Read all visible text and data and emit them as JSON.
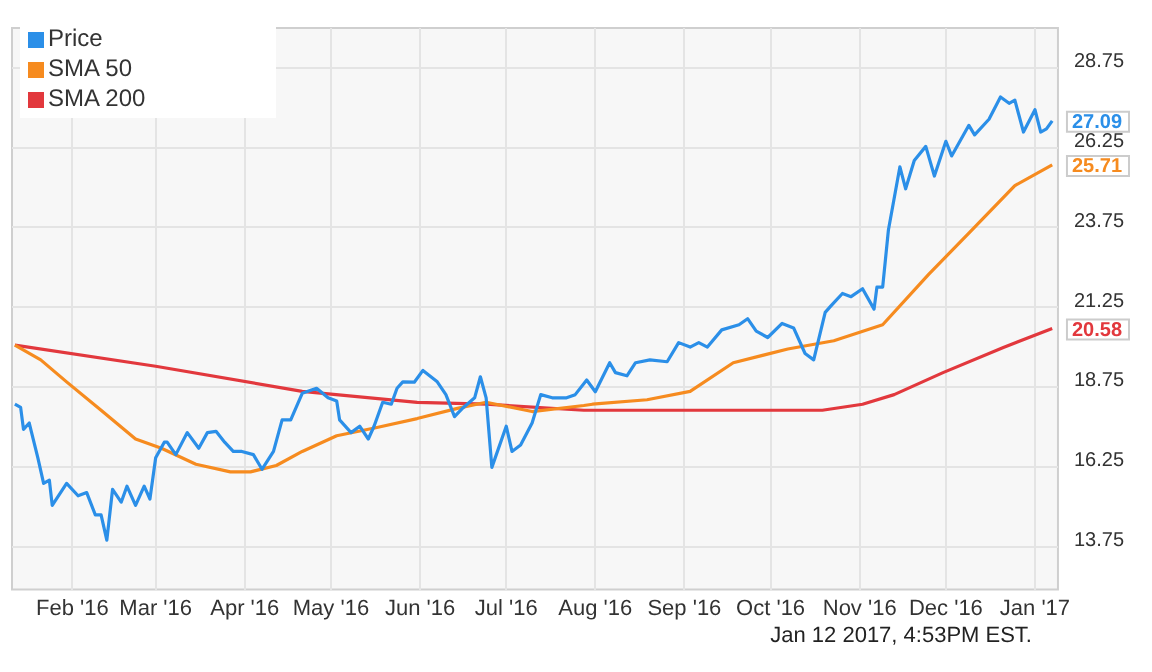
{
  "chart_data": {
    "type": "line",
    "xlim": [
      "2016-01-11",
      "2017-01-09"
    ],
    "xticks": [
      {
        "value": "2016-02-01",
        "label": "Feb '16"
      },
      {
        "value": "2016-03-01",
        "label": "Mar '16"
      },
      {
        "value": "2016-04-01",
        "label": "Apr '16"
      },
      {
        "value": "2016-05-01",
        "label": "May '16"
      },
      {
        "value": "2016-06-01",
        "label": "Jun '16"
      },
      {
        "value": "2016-07-01",
        "label": "Jul '16"
      },
      {
        "value": "2016-08-01",
        "label": "Aug '16"
      },
      {
        "value": "2016-09-01",
        "label": "Sep '16"
      },
      {
        "value": "2016-10-01",
        "label": "Oct '16"
      },
      {
        "value": "2016-11-01",
        "label": "Nov '16"
      },
      {
        "value": "2016-12-01",
        "label": "Dec '16"
      },
      {
        "value": "2017-01-01",
        "label": "Jan '17"
      }
    ],
    "ylim": [
      12.4,
      30
    ],
    "yticks": [
      13.75,
      16.25,
      18.75,
      21.25,
      23.75,
      26.25,
      28.75
    ],
    "grid": true,
    "legend": "top left",
    "marker": "none",
    "line_style": "solid",
    "annotations": [
      "Jan 12 2017, 4:53PM EST."
    ],
    "series": [
      {
        "name": "Price",
        "color": "#2b8fe8",
        "x": [
          "2016-01-12",
          "2016-01-14",
          "2016-01-15",
          "2016-01-17",
          "2016-01-20",
          "2016-01-22",
          "2016-01-24",
          "2016-01-25",
          "2016-01-30",
          "2016-02-03",
          "2016-02-06",
          "2016-02-09",
          "2016-02-11",
          "2016-02-13",
          "2016-02-15",
          "2016-02-18",
          "2016-02-20",
          "2016-02-23",
          "2016-02-26",
          "2016-02-28",
          "2016-03-01",
          "2016-03-04",
          "2016-03-05",
          "2016-03-08",
          "2016-03-12",
          "2016-03-16",
          "2016-03-19",
          "2016-03-22",
          "2016-03-25",
          "2016-03-28",
          "2016-03-31",
          "2016-04-04",
          "2016-04-07",
          "2016-04-11",
          "2016-04-14",
          "2016-04-17",
          "2016-04-21",
          "2016-04-26",
          "2016-04-30",
          "2016-05-03",
          "2016-05-04",
          "2016-05-08",
          "2016-05-11",
          "2016-05-14",
          "2016-05-16",
          "2016-05-19",
          "2016-05-22",
          "2016-05-24",
          "2016-05-26",
          "2016-05-30",
          "2016-06-02",
          "2016-06-07",
          "2016-06-10",
          "2016-06-13",
          "2016-06-16",
          "2016-06-20",
          "2016-06-22",
          "2016-06-24",
          "2016-06-26",
          "2016-07-01",
          "2016-07-03",
          "2016-07-06",
          "2016-07-10",
          "2016-07-13",
          "2016-07-17",
          "2016-07-22",
          "2016-07-25",
          "2016-07-29",
          "2016-08-01",
          "2016-08-06",
          "2016-08-08",
          "2016-08-12",
          "2016-08-15",
          "2016-08-20",
          "2016-08-26",
          "2016-08-30",
          "2016-09-03",
          "2016-09-06",
          "2016-09-09",
          "2016-09-14",
          "2016-09-20",
          "2016-09-23",
          "2016-09-26",
          "2016-09-30",
          "2016-10-05",
          "2016-10-09",
          "2016-10-13",
          "2016-10-16",
          "2016-10-20",
          "2016-10-22",
          "2016-10-26",
          "2016-10-29",
          "2016-11-02",
          "2016-11-06",
          "2016-11-07",
          "2016-11-09",
          "2016-11-11",
          "2016-11-15",
          "2016-11-17",
          "2016-11-20",
          "2016-11-24",
          "2016-11-27",
          "2016-12-01",
          "2016-12-03",
          "2016-12-09",
          "2016-12-11",
          "2016-12-16",
          "2016-12-20",
          "2016-12-23",
          "2016-12-25",
          "2016-12-28",
          "2017-01-01",
          "2017-01-03",
          "2017-01-05",
          "2017-01-07"
        ],
        "values": [
          18.21,
          18.11,
          17.42,
          17.62,
          16.53,
          15.73,
          15.83,
          15.04,
          15.73,
          15.34,
          15.44,
          14.74,
          14.74,
          13.95,
          15.54,
          15.14,
          15.64,
          15.04,
          15.64,
          15.24,
          16.53,
          17.02,
          17.02,
          16.63,
          17.32,
          16.83,
          17.32,
          17.36,
          17.02,
          16.73,
          16.73,
          16.63,
          16.17,
          16.73,
          17.72,
          17.72,
          18.55,
          18.71,
          18.41,
          18.31,
          17.72,
          17.32,
          17.52,
          17.12,
          17.52,
          18.27,
          18.21,
          18.71,
          18.91,
          18.9,
          19.27,
          18.91,
          18.51,
          17.82,
          18.1,
          18.41,
          19.07,
          18.41,
          16.23,
          17.52,
          16.73,
          16.93,
          17.62,
          18.51,
          18.41,
          18.41,
          18.51,
          18.97,
          18.6,
          19.51,
          19.2,
          19.1,
          19.51,
          19.6,
          19.54,
          20.14,
          20.0,
          20.14,
          20.0,
          20.54,
          20.7,
          20.89,
          20.5,
          20.3,
          20.74,
          20.6,
          19.8,
          19.6,
          21.09,
          21.29,
          21.68,
          21.58,
          21.83,
          21.19,
          21.88,
          21.88,
          23.67,
          25.65,
          24.96,
          25.85,
          26.29,
          25.36,
          26.45,
          25.99,
          26.95,
          26.65,
          27.14,
          27.84,
          27.64,
          27.74,
          26.74,
          27.44,
          26.74,
          26.84,
          27.09
        ],
        "value_labels": [
          null,
          null,
          null,
          null,
          null,
          null,
          null,
          null,
          null,
          null,
          null,
          null,
          null,
          null,
          null,
          null,
          null,
          null,
          null,
          null,
          null,
          null,
          null,
          null,
          null,
          null,
          null,
          null,
          null,
          null,
          null,
          null,
          null,
          null,
          null,
          null,
          null,
          null,
          null,
          null,
          null,
          null,
          null,
          null,
          null,
          null,
          null,
          null,
          null,
          null,
          null,
          null,
          null,
          null,
          null,
          null,
          null,
          null,
          null,
          null,
          null,
          null,
          null,
          null,
          null,
          null,
          null,
          null,
          null,
          null,
          null,
          null,
          null,
          null,
          null,
          null,
          null,
          null,
          null,
          null,
          null,
          null,
          null,
          null,
          null,
          null,
          null,
          null,
          null,
          null,
          null,
          null,
          null,
          null,
          null,
          null,
          null,
          null,
          null,
          null,
          null,
          null,
          null,
          null,
          null,
          null,
          null,
          null,
          null,
          null,
          null,
          null,
          null,
          null,
          "27.09"
        ]
      },
      {
        "name": "SMA 50",
        "color": "#f68b1f",
        "x": [
          "2016-01-12",
          "2016-01-21",
          "2016-01-30",
          "2016-02-11",
          "2016-02-23",
          "2016-03-03",
          "2016-03-15",
          "2016-03-27",
          "2016-04-03",
          "2016-04-12",
          "2016-04-21",
          "2016-05-03",
          "2016-05-17",
          "2016-05-31",
          "2016-06-14",
          "2016-06-24",
          "2016-07-10",
          "2016-07-28",
          "2016-07-31",
          "2016-08-19",
          "2016-09-03",
          "2016-09-18",
          "2016-10-07",
          "2016-10-23",
          "2016-11-09",
          "2016-11-25",
          "2016-12-09",
          "2016-12-25",
          "2017-01-07"
        ],
        "values": [
          20.06,
          19.6,
          18.91,
          18.02,
          17.12,
          16.83,
          16.33,
          16.09,
          16.09,
          16.29,
          16.73,
          17.22,
          17.48,
          17.76,
          18.08,
          18.27,
          17.98,
          18.17,
          18.21,
          18.35,
          18.61,
          19.51,
          19.94,
          20.2,
          20.7,
          22.28,
          23.57,
          25.06,
          25.71
        ],
        "value_labels": [
          null,
          null,
          null,
          null,
          null,
          null,
          null,
          null,
          null,
          null,
          null,
          null,
          null,
          null,
          null,
          null,
          null,
          null,
          null,
          null,
          null,
          null,
          null,
          null,
          null,
          null,
          null,
          null,
          "25.71"
        ]
      },
      {
        "name": "SMA 200",
        "color": "#e2383d",
        "x": [
          "2016-01-12",
          "2016-03-01",
          "2016-04-21",
          "2016-05-31",
          "2016-06-24",
          "2016-07-28",
          "2016-08-14",
          "2016-10-19",
          "2016-11-02",
          "2016-11-13",
          "2016-11-30",
          "2016-12-21",
          "2017-01-07"
        ],
        "values": [
          20.06,
          19.4,
          18.61,
          18.27,
          18.21,
          18.02,
          18.02,
          18.02,
          18.21,
          18.51,
          19.2,
          19.99,
          20.58
        ],
        "value_labels": [
          null,
          null,
          null,
          null,
          null,
          null,
          null,
          null,
          null,
          null,
          null,
          null,
          "20.58"
        ]
      }
    ]
  }
}
